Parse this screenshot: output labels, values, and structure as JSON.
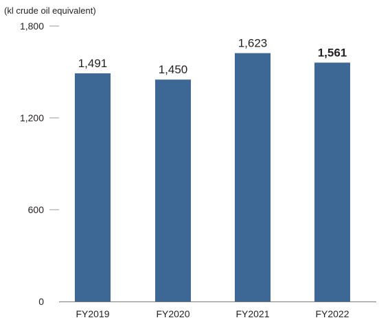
{
  "chart_data": {
    "type": "bar",
    "unit_label": "(kl crude oil equivalent)",
    "categories": [
      "FY2019",
      "FY2020",
      "FY2021",
      "FY2022"
    ],
    "values": [
      1491,
      1450,
      1623,
      1561
    ],
    "value_labels": [
      "1,491",
      "1,450",
      "1,623",
      "1,561"
    ],
    "highlight_index": 3,
    "ylim": [
      0,
      1800
    ],
    "y_ticks": [
      {
        "value": 0,
        "label": "0"
      },
      {
        "value": 600,
        "label": "600"
      },
      {
        "value": 1200,
        "label": "1,200"
      },
      {
        "value": 1800,
        "label": "1,800"
      }
    ],
    "bar_color": "#3d6896",
    "grid": false
  }
}
